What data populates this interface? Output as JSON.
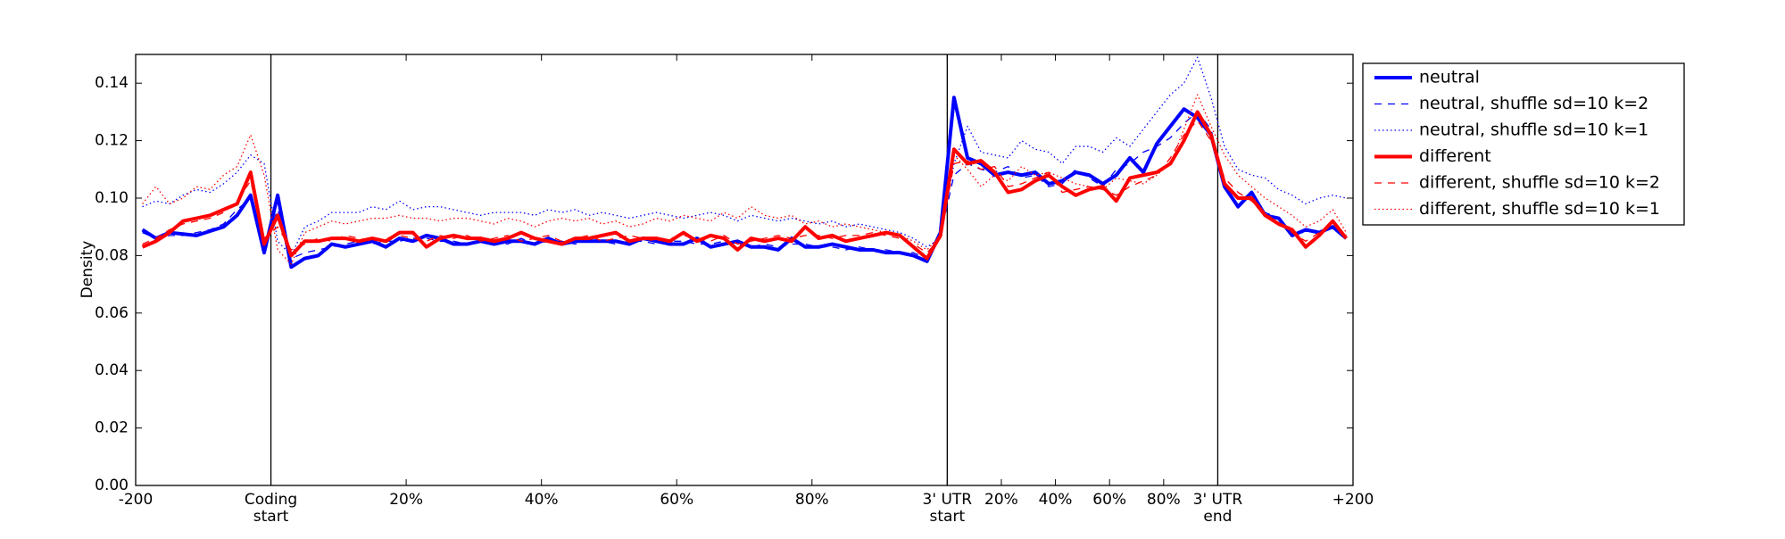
{
  "chart_data": {
    "type": "line",
    "ylabel": "Density",
    "x": [
      1,
      3,
      5,
      7,
      9,
      11,
      13,
      15,
      17,
      19,
      21,
      23,
      25,
      27,
      29,
      31,
      33,
      35,
      37,
      39,
      41,
      43,
      45,
      47,
      49,
      51,
      53,
      55,
      57,
      59,
      61,
      63,
      65,
      67,
      69,
      71,
      73,
      75,
      77,
      79,
      81,
      83,
      85,
      87,
      89,
      91,
      93,
      95,
      97,
      99,
      101,
      103,
      105,
      107,
      109,
      111,
      113,
      115,
      117,
      119,
      121,
      123,
      125,
      127,
      129,
      131,
      133,
      135,
      137,
      139,
      141,
      143,
      145,
      147,
      149,
      151,
      153,
      155,
      157,
      159,
      161,
      163,
      165,
      167,
      169,
      171,
      173,
      175,
      177,
      179
    ],
    "xlim": [
      0,
      180
    ],
    "xticks": [
      {
        "value": 0,
        "label": "-200"
      },
      {
        "value": 20,
        "label": "Coding\nstart"
      },
      {
        "value": 40,
        "label": "20%"
      },
      {
        "value": 60,
        "label": "40%"
      },
      {
        "value": 80,
        "label": "60%"
      },
      {
        "value": 100,
        "label": "80%"
      },
      {
        "value": 120,
        "label": "3' UTR\nstart"
      },
      {
        "value": 128,
        "label": "20%"
      },
      {
        "value": 136,
        "label": "40%"
      },
      {
        "value": 144,
        "label": "60%"
      },
      {
        "value": 152,
        "label": "80%"
      },
      {
        "value": 160,
        "label": "3' UTR\nend"
      },
      {
        "value": 180,
        "label": "+200"
      }
    ],
    "vlines": [
      20,
      120,
      160
    ],
    "ylim": [
      0,
      0.15
    ],
    "yticks": [
      {
        "value": 0,
        "label": "0.00"
      },
      0.02,
      0.04,
      0.06,
      0.08,
      {
        "value": 0.1,
        "label": "0.10"
      },
      0.12,
      0.14
    ],
    "grid": false,
    "legend": "outside-upper-right",
    "series": [
      {
        "name": "neutral",
        "color": "#0000ff",
        "linestyle": "solid",
        "linewidth": 4,
        "values": [
          0.089,
          0.086,
          0.088,
          0.0875,
          0.087,
          0.0885,
          0.09,
          0.094,
          0.101,
          0.081,
          0.101,
          0.076,
          0.079,
          0.08,
          0.084,
          0.083,
          0.084,
          0.085,
          0.083,
          0.086,
          0.085,
          0.087,
          0.086,
          0.084,
          0.084,
          0.085,
          0.084,
          0.085,
          0.085,
          0.084,
          0.086,
          0.084,
          0.085,
          0.085,
          0.085,
          0.085,
          0.084,
          0.086,
          0.085,
          0.084,
          0.084,
          0.086,
          0.083,
          0.084,
          0.085,
          0.083,
          0.083,
          0.082,
          0.086,
          0.083,
          0.083,
          0.084,
          0.083,
          0.082,
          0.082,
          0.081,
          0.081,
          0.08,
          0.078,
          0.088,
          0.135,
          0.114,
          0.112,
          0.108,
          0.109,
          0.108,
          0.109,
          0.105,
          0.106,
          0.109,
          0.108,
          0.105,
          0.108,
          0.114,
          0.109,
          0.119,
          0.125,
          0.131,
          0.128,
          0.122,
          0.104,
          0.097,
          0.102,
          0.094,
          0.093,
          0.087,
          0.089,
          0.088,
          0.09,
          0.086
        ]
      },
      {
        "name": "neutral, shuffle sd=10 k=2",
        "color": "#0000ff",
        "linestyle": "dashed",
        "linewidth": 1.3,
        "values": [
          0.088,
          0.086,
          0.087,
          0.087,
          0.088,
          0.089,
          0.091,
          0.096,
          0.1,
          0.083,
          0.096,
          0.079,
          0.081,
          0.082,
          0.083,
          0.084,
          0.085,
          0.084,
          0.085,
          0.085,
          0.086,
          0.086,
          0.085,
          0.085,
          0.084,
          0.085,
          0.085,
          0.084,
          0.086,
          0.084,
          0.085,
          0.085,
          0.084,
          0.086,
          0.085,
          0.084,
          0.085,
          0.085,
          0.084,
          0.085,
          0.085,
          0.084,
          0.084,
          0.085,
          0.084,
          0.083,
          0.084,
          0.083,
          0.084,
          0.084,
          0.083,
          0.083,
          0.082,
          0.083,
          0.082,
          0.082,
          0.081,
          0.081,
          0.079,
          0.087,
          0.108,
          0.112,
          0.11,
          0.109,
          0.111,
          0.107,
          0.108,
          0.104,
          0.105,
          0.11,
          0.107,
          0.104,
          0.11,
          0.112,
          0.116,
          0.118,
          0.121,
          0.126,
          0.13,
          0.124,
          0.105,
          0.1,
          0.101,
          0.095,
          0.093,
          0.088,
          0.088,
          0.089,
          0.089,
          0.087
        ]
      },
      {
        "name": "neutral, shuffle sd=10 k=1",
        "color": "#0000ff",
        "linestyle": "dotted",
        "linewidth": 1.3,
        "values": [
          0.097,
          0.099,
          0.098,
          0.101,
          0.103,
          0.102,
          0.105,
          0.109,
          0.115,
          0.112,
          0.085,
          0.08,
          0.09,
          0.092,
          0.095,
          0.095,
          0.095,
          0.097,
          0.096,
          0.099,
          0.096,
          0.097,
          0.097,
          0.096,
          0.095,
          0.094,
          0.095,
          0.095,
          0.095,
          0.094,
          0.096,
          0.095,
          0.096,
          0.094,
          0.095,
          0.094,
          0.093,
          0.094,
          0.095,
          0.094,
          0.093,
          0.094,
          0.095,
          0.094,
          0.092,
          0.094,
          0.093,
          0.092,
          0.093,
          0.092,
          0.091,
          0.092,
          0.09,
          0.091,
          0.09,
          0.089,
          0.088,
          0.086,
          0.083,
          0.086,
          0.112,
          0.125,
          0.116,
          0.115,
          0.114,
          0.12,
          0.117,
          0.116,
          0.112,
          0.118,
          0.118,
          0.116,
          0.121,
          0.118,
          0.124,
          0.13,
          0.136,
          0.14,
          0.149,
          0.135,
          0.118,
          0.11,
          0.108,
          0.107,
          0.103,
          0.101,
          0.098,
          0.1,
          0.101,
          0.1
        ]
      },
      {
        "name": "different",
        "color": "#ff0000",
        "linestyle": "solid",
        "linewidth": 4,
        "values": [
          0.083,
          0.085,
          0.088,
          0.092,
          0.093,
          0.094,
          0.096,
          0.098,
          0.109,
          0.084,
          0.094,
          0.08,
          0.085,
          0.085,
          0.086,
          0.086,
          0.085,
          0.086,
          0.085,
          0.088,
          0.088,
          0.083,
          0.086,
          0.087,
          0.086,
          0.086,
          0.085,
          0.086,
          0.088,
          0.086,
          0.085,
          0.084,
          0.086,
          0.086,
          0.087,
          0.088,
          0.085,
          0.086,
          0.086,
          0.085,
          0.088,
          0.085,
          0.087,
          0.086,
          0.082,
          0.086,
          0.085,
          0.086,
          0.085,
          0.09,
          0.086,
          0.087,
          0.085,
          0.086,
          0.087,
          0.088,
          0.087,
          0.083,
          0.079,
          0.087,
          0.117,
          0.112,
          0.113,
          0.109,
          0.102,
          0.103,
          0.106,
          0.108,
          0.104,
          0.101,
          0.103,
          0.104,
          0.099,
          0.107,
          0.108,
          0.109,
          0.112,
          0.12,
          0.13,
          0.122,
          0.105,
          0.1,
          0.1,
          0.094,
          0.091,
          0.089,
          0.083,
          0.087,
          0.092,
          0.086
        ]
      },
      {
        "name": "different, shuffle sd=10 k=2",
        "color": "#ff0000",
        "linestyle": "dashed",
        "linewidth": 1.3,
        "values": [
          0.084,
          0.086,
          0.089,
          0.091,
          0.092,
          0.093,
          0.095,
          0.099,
          0.106,
          0.086,
          0.09,
          0.082,
          0.084,
          0.086,
          0.085,
          0.087,
          0.086,
          0.085,
          0.086,
          0.087,
          0.086,
          0.085,
          0.087,
          0.086,
          0.087,
          0.085,
          0.086,
          0.087,
          0.085,
          0.086,
          0.087,
          0.085,
          0.086,
          0.087,
          0.085,
          0.086,
          0.087,
          0.086,
          0.085,
          0.086,
          0.087,
          0.086,
          0.085,
          0.087,
          0.084,
          0.085,
          0.086,
          0.087,
          0.086,
          0.087,
          0.087,
          0.086,
          0.087,
          0.087,
          0.088,
          0.087,
          0.086,
          0.084,
          0.081,
          0.086,
          0.112,
          0.113,
          0.11,
          0.111,
          0.104,
          0.105,
          0.107,
          0.109,
          0.102,
          0.103,
          0.104,
          0.103,
          0.101,
          0.104,
          0.106,
          0.108,
          0.114,
          0.122,
          0.127,
          0.12,
          0.107,
          0.102,
          0.099,
          0.095,
          0.091,
          0.088,
          0.085,
          0.088,
          0.091,
          0.087
        ]
      },
      {
        "name": "different, shuffle sd=10 k=1",
        "color": "#ff0000",
        "linestyle": "dotted",
        "linewidth": 1.3,
        "values": [
          0.098,
          0.104,
          0.098,
          0.1,
          0.104,
          0.103,
          0.108,
          0.111,
          0.122,
          0.108,
          0.082,
          0.077,
          0.088,
          0.09,
          0.092,
          0.091,
          0.092,
          0.093,
          0.093,
          0.094,
          0.093,
          0.093,
          0.092,
          0.093,
          0.093,
          0.092,
          0.091,
          0.093,
          0.092,
          0.09,
          0.092,
          0.093,
          0.092,
          0.093,
          0.091,
          0.092,
          0.09,
          0.091,
          0.093,
          0.092,
          0.094,
          0.093,
          0.092,
          0.095,
          0.093,
          0.097,
          0.094,
          0.093,
          0.094,
          0.091,
          0.092,
          0.09,
          0.091,
          0.09,
          0.089,
          0.088,
          0.087,
          0.085,
          0.082,
          0.087,
          0.115,
          0.11,
          0.104,
          0.108,
          0.106,
          0.111,
          0.108,
          0.109,
          0.107,
          0.105,
          0.104,
          0.103,
          0.107,
          0.106,
          0.105,
          0.108,
          0.112,
          0.124,
          0.136,
          0.125,
          0.115,
          0.108,
          0.104,
          0.1,
          0.097,
          0.094,
          0.09,
          0.092,
          0.096,
          0.088
        ]
      }
    ]
  }
}
